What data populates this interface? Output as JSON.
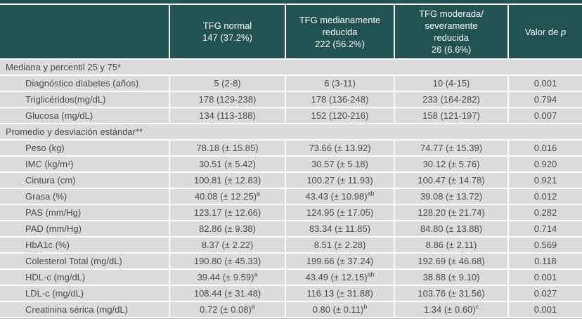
{
  "colors": {
    "header_bg": "#215350",
    "row_bg": "#dbdbdb",
    "header_text": "#ffffff",
    "body_text": "#4a4a4a",
    "separator": "#ffffff"
  },
  "table": {
    "columns": [
      {
        "name": "row-labels",
        "lines": []
      },
      {
        "name": "tfg-normal",
        "lines": [
          "TFG normal",
          "147 (37.2%)"
        ]
      },
      {
        "name": "tfg-medianamente-reducida",
        "lines": [
          "TFG medianamente",
          "reducida",
          "222 (56.2%)"
        ]
      },
      {
        "name": "tfg-moderada-severamente-reducida",
        "lines": [
          "TFG moderada/",
          "severamente",
          "reducida",
          "26 (6.6%)"
        ]
      },
      {
        "name": "valor-de-p",
        "prefix": "Valor de ",
        "italic": "p"
      }
    ],
    "sections": [
      {
        "title": "Mediana y percentil 25 y 75*",
        "rows": [
          {
            "label": "Diagnóstico diabetes (años)",
            "values": [
              {
                "v": "5 (2-8)",
                "s": ""
              },
              {
                "v": "6 (3-11)",
                "s": ""
              },
              {
                "v": "10 (4-15)",
                "s": ""
              }
            ],
            "p": "0.001"
          },
          {
            "label": "Triglicéridos(mg/dL)",
            "values": [
              {
                "v": "178 (129-238)",
                "s": ""
              },
              {
                "v": "178 (136-248)",
                "s": ""
              },
              {
                "v": "233 (164-282)",
                "s": ""
              }
            ],
            "p": "0.794"
          },
          {
            "label": "Glucosa (mg/dL)",
            "values": [
              {
                "v": "134 (113-188)",
                "s": ""
              },
              {
                "v": "152 (120-216)",
                "s": ""
              },
              {
                "v": "158 (121-197)",
                "s": ""
              }
            ],
            "p": "0.007"
          }
        ]
      },
      {
        "title": "Promedio y desviación estándar**",
        "rows": [
          {
            "label": "Peso (kg)",
            "values": [
              {
                "v": "78.18 (± 15.85)",
                "s": ""
              },
              {
                "v": "73.66 (± 13.92)",
                "s": ""
              },
              {
                "v": "74.77 (± 15.39)",
                "s": ""
              }
            ],
            "p": "0.016"
          },
          {
            "label": "IMC (kg/m²)",
            "values": [
              {
                "v": "30.51 (± 5.42)",
                "s": ""
              },
              {
                "v": "30.57 (± 5.18)",
                "s": ""
              },
              {
                "v": "30.12 (± 5.76)",
                "s": ""
              }
            ],
            "p": "0.920"
          },
          {
            "label": "Cintura (cm)",
            "values": [
              {
                "v": "100.81 (± 12.83)",
                "s": ""
              },
              {
                "v": "100.27 (± 11.93)",
                "s": ""
              },
              {
                "v": "100.47 (± 14.78)",
                "s": ""
              }
            ],
            "p": "0.921"
          },
          {
            "label": "Grasa (%)",
            "values": [
              {
                "v": "40.08 (± 12.25)",
                "s": "a"
              },
              {
                "v": "43.43 (± 10.98)",
                "s": "ab"
              },
              {
                "v": "39.08 (± 13.72)",
                "s": ""
              }
            ],
            "p": "0.012"
          },
          {
            "label": "PAS (mm/Hg)",
            "values": [
              {
                "v": "123.17 (± 12.66)",
                "s": ""
              },
              {
                "v": "124.95 (± 17.05)",
                "s": ""
              },
              {
                "v": "128.20 (± 21.74)",
                "s": ""
              }
            ],
            "p": "0.282"
          },
          {
            "label": "PAD (mm/Hg)",
            "values": [
              {
                "v": "82.86 (± 9.38)",
                "s": ""
              },
              {
                "v": "83.34 (± 11.85)",
                "s": ""
              },
              {
                "v": "84.80 (± 13.88)",
                "s": ""
              }
            ],
            "p": "0.714"
          },
          {
            "label": "HbA1c (%)",
            "values": [
              {
                "v": "8.37 (± 2.22)",
                "s": ""
              },
              {
                "v": "8.51 (± 2.28)",
                "s": ""
              },
              {
                "v": "8.86 (± 2.11)",
                "s": ""
              }
            ],
            "p": "0.569"
          },
          {
            "label": "Colesterol Total (mg/dL)",
            "values": [
              {
                "v": "190.80 (± 45.33)",
                "s": ""
              },
              {
                "v": "199.66 (± 37.24)",
                "s": ""
              },
              {
                "v": "192.69 (± 46.68)",
                "s": ""
              }
            ],
            "p": "0.118"
          },
          {
            "label": "HDL-c (mg/dL)",
            "values": [
              {
                "v": "39.44 (± 9.59)",
                "s": "a"
              },
              {
                "v": "43.49 (± 12.15)",
                "s": "ab"
              },
              {
                "v": "38.88 (± 9.10)",
                "s": ""
              }
            ],
            "p": "0.001"
          },
          {
            "label": "LDL-c (mg/dL)",
            "values": [
              {
                "v": "108.44 (± 31.48)",
                "s": ""
              },
              {
                "v": "116.13 (± 31.88)",
                "s": ""
              },
              {
                "v": "103.76 (± 31.56)",
                "s": ""
              }
            ],
            "p": "0.027"
          },
          {
            "label": "Creatinina sérica (mg/dL)",
            "values": [
              {
                "v": "0.72 (± 0.08)",
                "s": "a"
              },
              {
                "v": "0.80 (± 0.11)",
                "s": "b"
              },
              {
                "v": "1.34 (± 0.60)",
                "s": "c"
              }
            ],
            "p": "0.001"
          }
        ]
      }
    ]
  }
}
